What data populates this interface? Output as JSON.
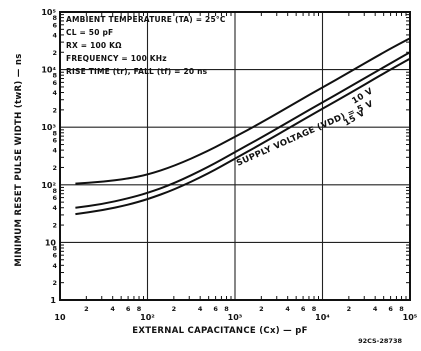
{
  "chart_data": {
    "type": "line",
    "title": "",
    "xlabel": "EXTERNAL CAPACITANCE (Cx) — pF",
    "ylabel": "MINIMUM RESET PULSE WIDTH (twR) — ns",
    "x_scale": "log",
    "y_scale": "log",
    "xlim": [
      10,
      100000
    ],
    "ylim": [
      1,
      100000
    ],
    "grid": true,
    "legend": "none",
    "x_major_ticks": [
      {
        "value": 10,
        "label": "10"
      },
      {
        "value": 100,
        "label": "10²"
      },
      {
        "value": 1000,
        "label": "10³"
      },
      {
        "value": 10000,
        "label": "10⁴"
      },
      {
        "value": 100000,
        "label": "10⁵"
      }
    ],
    "y_major_ticks": [
      {
        "value": 1,
        "label": "1"
      },
      {
        "value": 10,
        "label": "10"
      },
      {
        "value": 100,
        "label": "10²"
      },
      {
        "value": 1000,
        "label": "10³"
      },
      {
        "value": 10000,
        "label": "10⁴"
      },
      {
        "value": 100000,
        "label": "10⁵"
      }
    ],
    "minor_labels": [
      "2",
      "4",
      "6",
      "8"
    ],
    "conditions": [
      "AMBIENT TEMPERATURE (TA) = 25°C",
      "CL = 50 pF",
      "RX = 100 KΩ",
      "FREQUENCY = 100 KHz",
      "RISE TIME (tr), FALL (tf) = 20 ns"
    ],
    "annotation": "SUPPLY VOLTAGE (VDD) = 5 V",
    "series": [
      {
        "name": "5 V",
        "x": [
          15,
          30,
          60,
          100,
          200,
          500,
          1000,
          2000,
          5000,
          10000,
          20000,
          50000,
          100000
        ],
        "y": [
          105,
          112,
          128,
          150,
          210,
          390,
          680,
          1200,
          2700,
          4900,
          8900,
          20000,
          35000
        ]
      },
      {
        "name": "10 V",
        "x": [
          15,
          30,
          60,
          100,
          200,
          500,
          1000,
          2000,
          5000,
          10000,
          20000,
          50000,
          100000
        ],
        "y": [
          40,
          46,
          58,
          72,
          105,
          205,
          370,
          660,
          1480,
          2700,
          4900,
          11000,
          20000
        ]
      },
      {
        "name": "15 V",
        "x": [
          15,
          30,
          60,
          100,
          200,
          500,
          1000,
          2000,
          5000,
          10000,
          20000,
          50000,
          100000
        ],
        "y": [
          31,
          36,
          45,
          56,
          82,
          158,
          285,
          510,
          1150,
          2100,
          3800,
          8600,
          15500
        ]
      }
    ]
  },
  "figure_code": "92CS-28738"
}
